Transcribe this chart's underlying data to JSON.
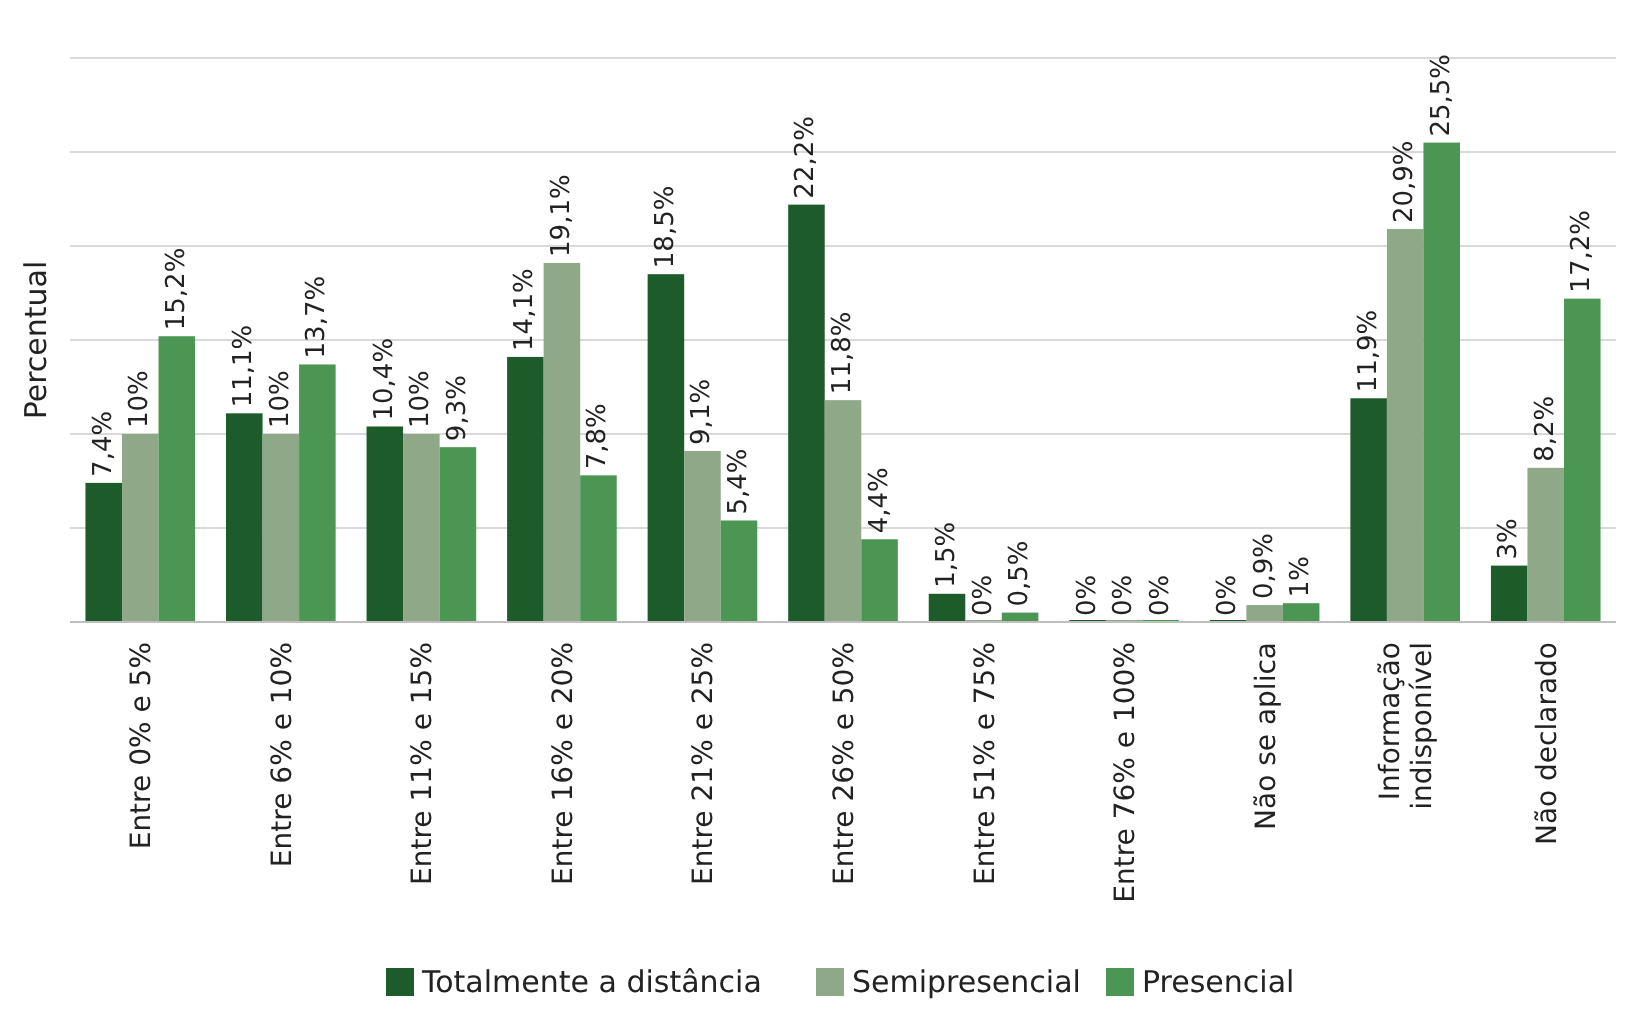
{
  "chart_data": {
    "type": "bar",
    "ylabel": "Percentual",
    "categories": [
      "Entre 0% e 5%",
      "Entre 6% e 10%",
      "Entre 11% e 15%",
      "Entre 16% e 20%",
      "Entre 21% e 25%",
      "Entre 26% e 50%",
      "Entre 51% e 75%",
      "Entre 76% e 100%",
      "Não se aplica",
      "Informação\nindisponível",
      "Não declarado"
    ],
    "series": [
      {
        "name": "Totalmente a distância",
        "color": "#1e5b2a",
        "values": [
          7.4,
          11.1,
          10.4,
          14.1,
          18.5,
          22.2,
          1.5,
          0,
          0,
          11.9,
          3
        ],
        "value_labels": [
          "7,4%",
          "11,1%",
          "10,4%",
          "14,1%",
          "18,5%",
          "22,2%",
          "1,5%",
          "0%",
          "0%",
          "11,9%",
          "3%"
        ]
      },
      {
        "name": "Semipresencial",
        "color": "#8ea888",
        "values": [
          10,
          10,
          10,
          19.1,
          9.1,
          11.8,
          0,
          0,
          0.9,
          20.9,
          8.2
        ],
        "value_labels": [
          "10%",
          "10%",
          "10%",
          "19,1%",
          "9,1%",
          "11,8%",
          "0%",
          "0%",
          "0,9%",
          "20,9%",
          "8,2%"
        ]
      },
      {
        "name": "Presencial",
        "color": "#4b9653",
        "values": [
          15.2,
          13.7,
          9.3,
          7.8,
          5.4,
          4.4,
          0.5,
          0,
          1,
          25.5,
          17.2
        ],
        "value_labels": [
          "15,2%",
          "13,7%",
          "9,3%",
          "7,8%",
          "5,4%",
          "4,4%",
          "0,5%",
          "0%",
          "1%",
          "25,5%",
          "17,2%"
        ]
      }
    ],
    "ylim": [
      0,
      30
    ],
    "yticks": [
      {
        "value": 0,
        "label": null
      },
      {
        "value": 5,
        "label": null
      },
      {
        "value": 10,
        "label": null
      },
      {
        "value": 15,
        "label": null
      },
      {
        "value": 20,
        "label": null
      },
      {
        "value": 25,
        "label": null
      },
      {
        "value": 30,
        "label": null
      }
    ],
    "grid": "y",
    "legend": "bottom"
  }
}
